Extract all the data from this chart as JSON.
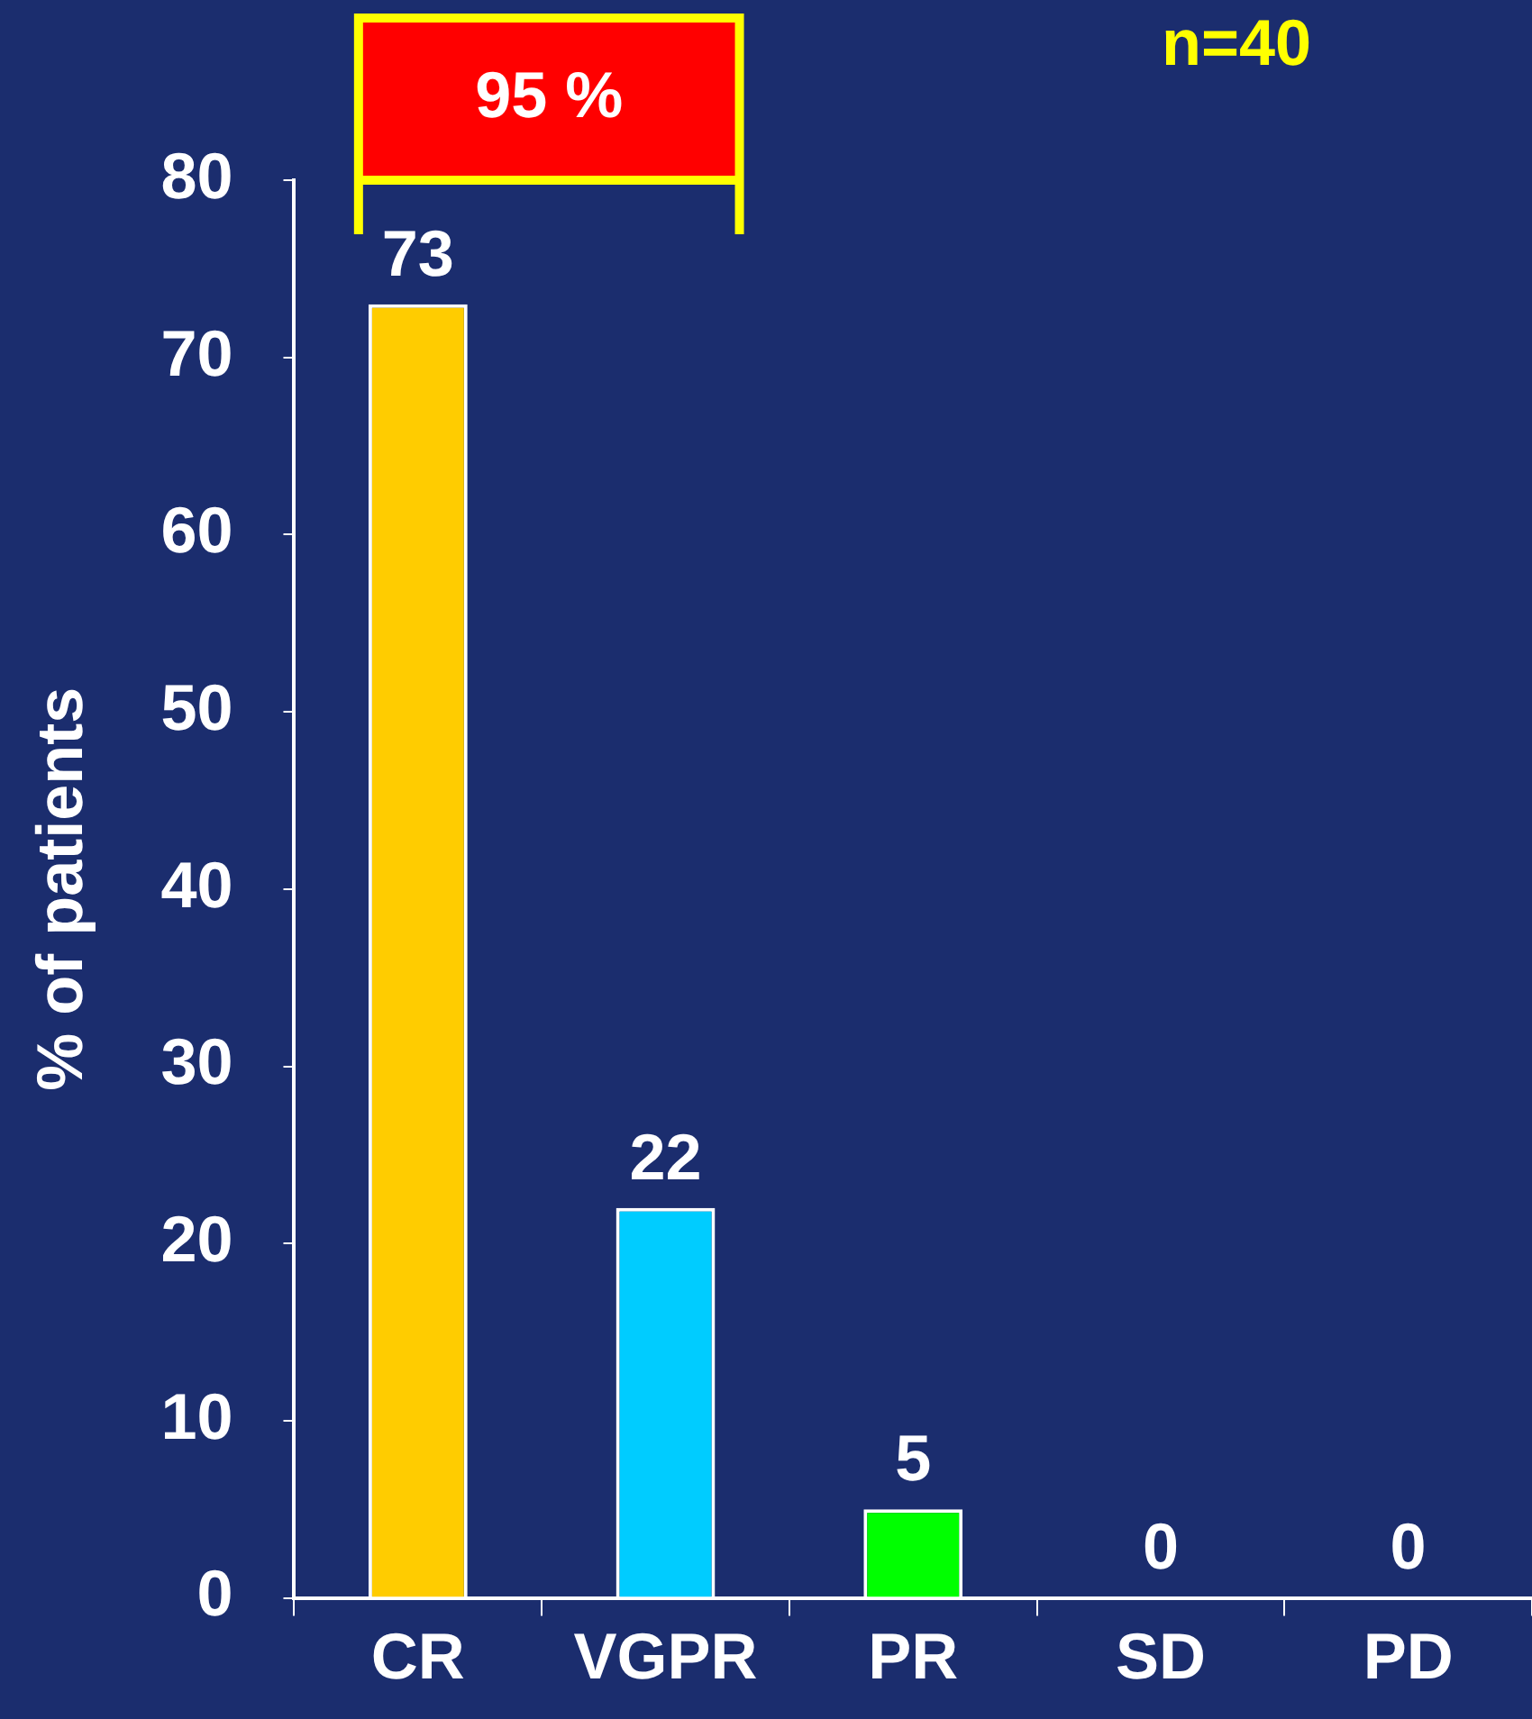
{
  "chart_data": {
    "type": "bar",
    "ylabel": "% of patients",
    "categories": [
      "CR",
      "VGPR",
      "PR",
      "SD",
      "PD"
    ],
    "values": [
      73,
      22,
      5,
      0,
      0
    ],
    "colors": [
      "#ffcc00",
      "#00ccff",
      "#00ff00",
      "#00ff00",
      "#00ff00"
    ],
    "ylim": [
      0,
      80
    ],
    "yticks": [
      0,
      10,
      20,
      30,
      40,
      50,
      60,
      70,
      80
    ],
    "grid": false,
    "legend": false,
    "data_labels": true,
    "annotations": [
      "95 %",
      "n=40"
    ]
  }
}
